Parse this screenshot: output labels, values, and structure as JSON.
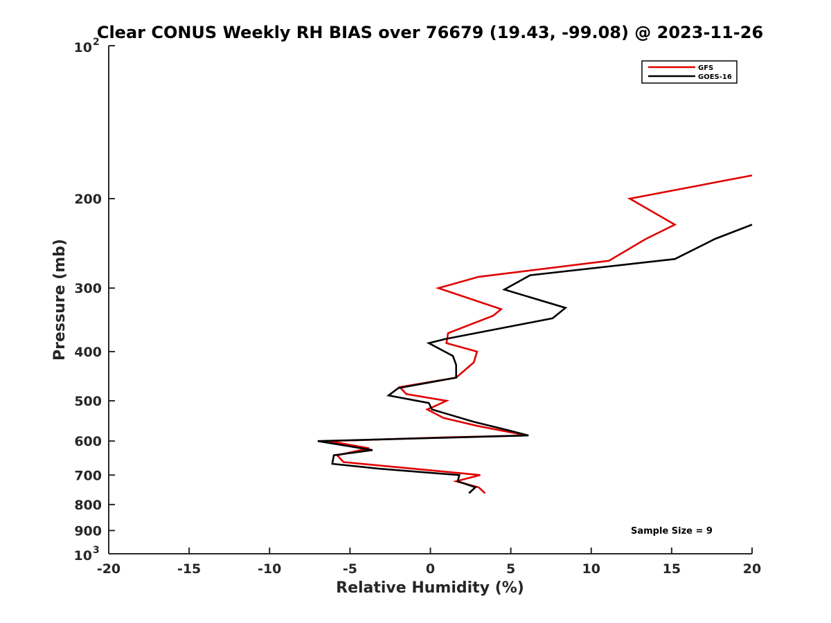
{
  "chart_data": {
    "type": "line",
    "title": "Clear CONUS Weekly RH BIAS over 76679 (19.43, -99.08) @ 2023-11-26",
    "xlabel": "Relative Humidity (%)",
    "ylabel": "Pressure (mb)",
    "xlim": [
      -20,
      20
    ],
    "ylim": [
      100,
      1000
    ],
    "y_scale": "log",
    "y_reversed": true,
    "grid": false,
    "legend_position": "top-right",
    "x_ticks": [
      "-20",
      "-15",
      "-10",
      "-5",
      "0",
      "5",
      "10",
      "15",
      "20"
    ],
    "y_ticks": [
      "200",
      "300",
      "400",
      "500",
      "600",
      "700",
      "800",
      "900"
    ],
    "y_tick_extremes": [
      {
        "base": "10",
        "exp": "2"
      },
      {
        "base": "10",
        "exp": "3"
      }
    ],
    "annotation": "Sample Size = 9",
    "series": [
      {
        "name": "GFS",
        "color": "#e00000",
        "points": [
          {
            "x": 20.0,
            "y": 180
          },
          {
            "x": 12.4,
            "y": 200
          },
          {
            "x": 15.2,
            "y": 225
          },
          {
            "x": 13.4,
            "y": 240
          },
          {
            "x": 11.1,
            "y": 265
          },
          {
            "x": 3.0,
            "y": 285
          },
          {
            "x": 0.5,
            "y": 300
          },
          {
            "x": 4.4,
            "y": 330
          },
          {
            "x": 3.9,
            "y": 340
          },
          {
            "x": 1.1,
            "y": 368
          },
          {
            "x": 1.0,
            "y": 385
          },
          {
            "x": 2.9,
            "y": 400
          },
          {
            "x": 2.7,
            "y": 420
          },
          {
            "x": 1.6,
            "y": 450
          },
          {
            "x": -1.9,
            "y": 470
          },
          {
            "x": -1.5,
            "y": 485
          },
          {
            "x": 1.0,
            "y": 500
          },
          {
            "x": 0.4,
            "y": 510
          },
          {
            "x": -0.2,
            "y": 520
          },
          {
            "x": 0.8,
            "y": 540
          },
          {
            "x": 2.9,
            "y": 560
          },
          {
            "x": 6.0,
            "y": 585
          },
          {
            "x": 1.0,
            "y": 590
          },
          {
            "x": -6.3,
            "y": 600
          },
          {
            "x": -3.8,
            "y": 620
          },
          {
            "x": -5.8,
            "y": 640
          },
          {
            "x": -5.4,
            "y": 660
          },
          {
            "x": 3.1,
            "y": 700
          },
          {
            "x": 1.6,
            "y": 720
          },
          {
            "x": 3.0,
            "y": 740
          },
          {
            "x": 3.4,
            "y": 760
          }
        ]
      },
      {
        "name": "GOES-16",
        "color": "#000000",
        "points": [
          {
            "x": 20.0,
            "y": 225
          },
          {
            "x": 17.7,
            "y": 240
          },
          {
            "x": 15.2,
            "y": 263
          },
          {
            "x": 6.2,
            "y": 283
          },
          {
            "x": 4.6,
            "y": 302
          },
          {
            "x": 8.4,
            "y": 328
          },
          {
            "x": 7.6,
            "y": 344
          },
          {
            "x": 0.9,
            "y": 378
          },
          {
            "x": -0.1,
            "y": 385
          },
          {
            "x": 1.4,
            "y": 408
          },
          {
            "x": 1.6,
            "y": 425
          },
          {
            "x": 1.6,
            "y": 450
          },
          {
            "x": -2.0,
            "y": 472
          },
          {
            "x": -2.6,
            "y": 488
          },
          {
            "x": -0.1,
            "y": 505
          },
          {
            "x": 0.1,
            "y": 520
          },
          {
            "x": 2.7,
            "y": 550
          },
          {
            "x": 4.7,
            "y": 570
          },
          {
            "x": 6.1,
            "y": 585
          },
          {
            "x": -7.0,
            "y": 600
          },
          {
            "x": -3.6,
            "y": 625
          },
          {
            "x": -6.0,
            "y": 640
          },
          {
            "x": -6.1,
            "y": 665
          },
          {
            "x": -3.2,
            "y": 680
          },
          {
            "x": 1.8,
            "y": 700
          },
          {
            "x": 1.7,
            "y": 720
          },
          {
            "x": 2.8,
            "y": 740
          },
          {
            "x": 2.4,
            "y": 760
          }
        ]
      }
    ]
  }
}
